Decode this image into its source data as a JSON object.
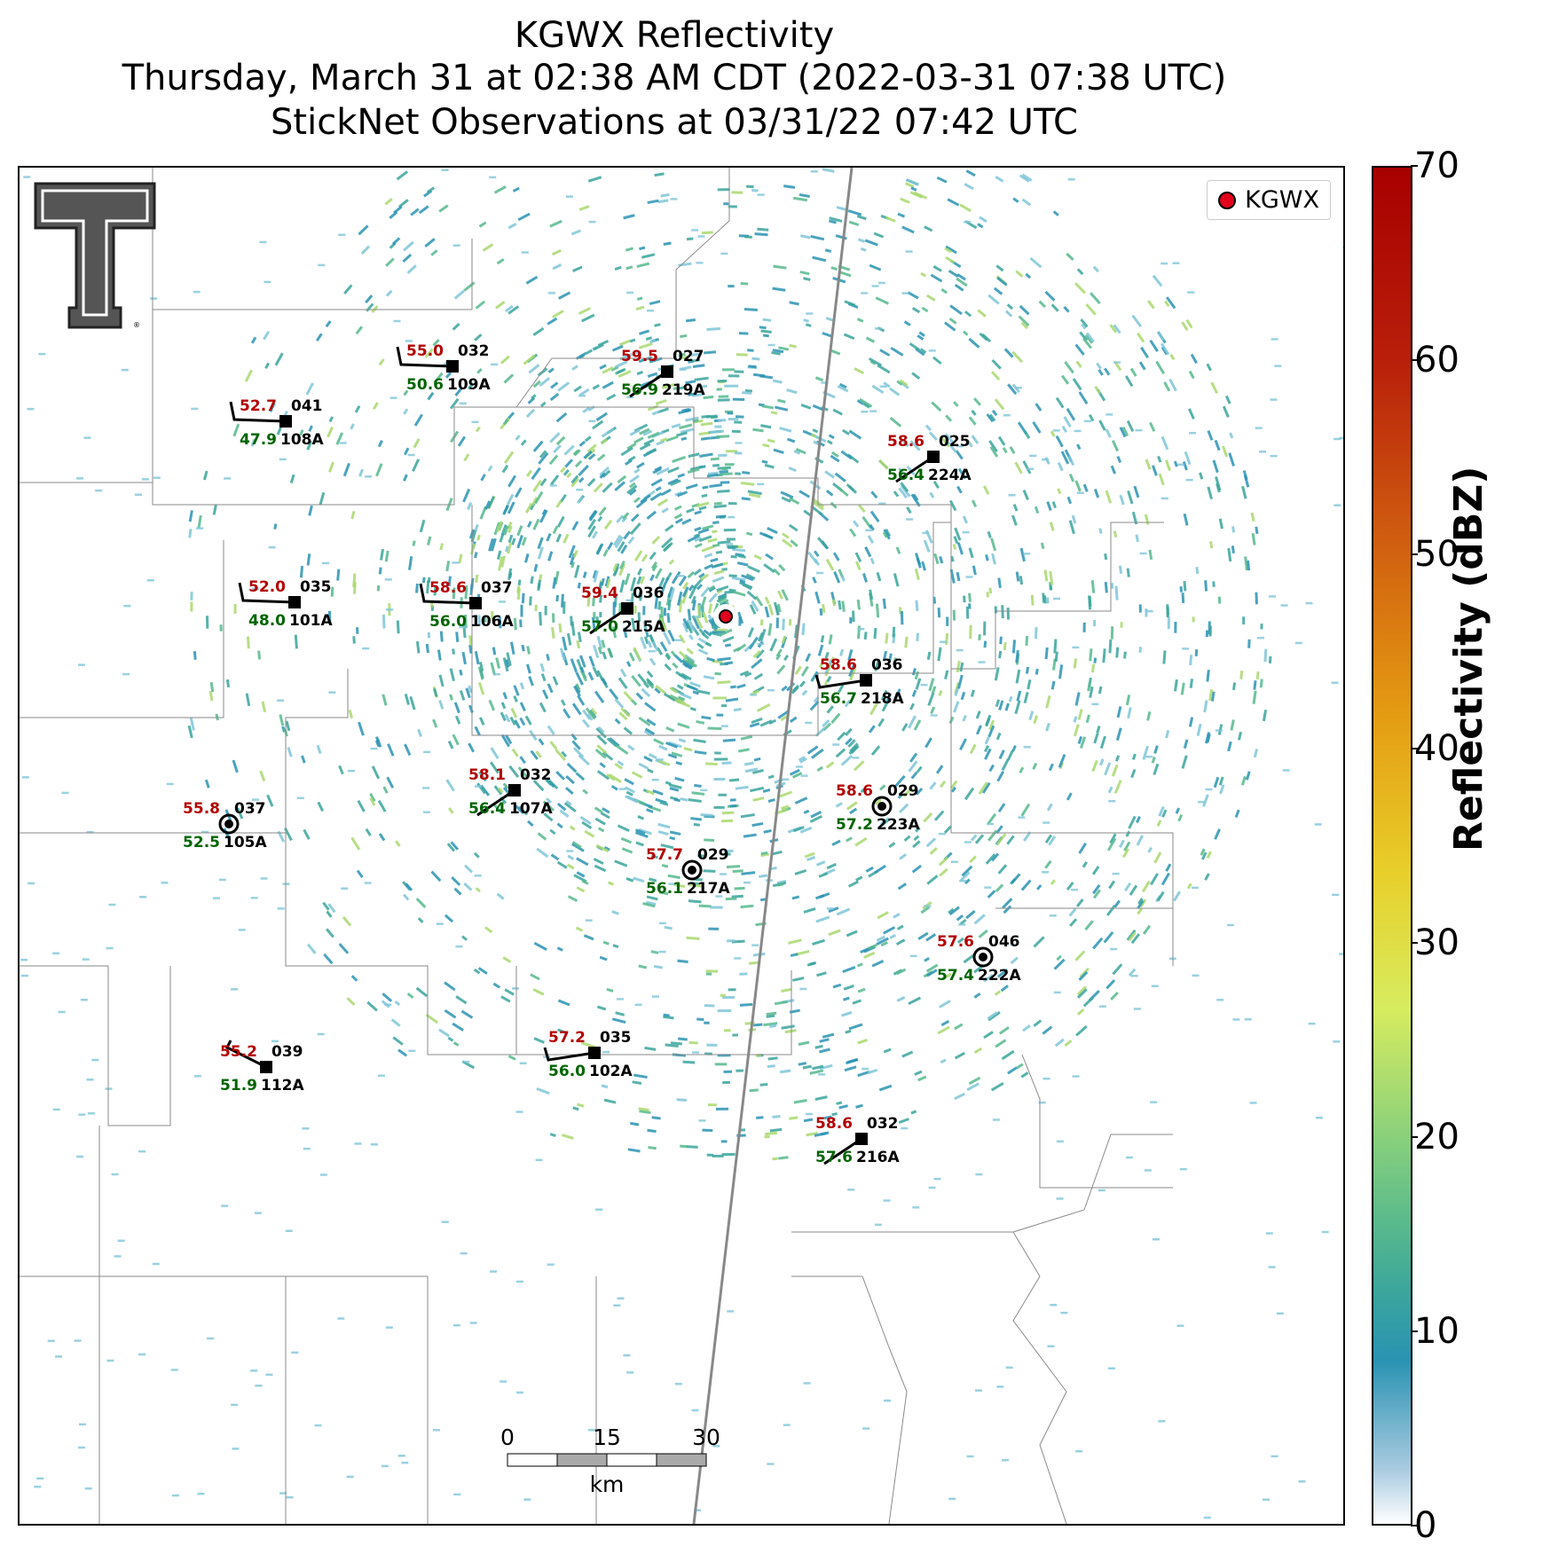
{
  "title": {
    "line1": "KGWX Reflectivity",
    "line2": "Thursday, March 31 at 02:38 AM CDT (2022-03-31 07:38 UTC)",
    "line3": "StickNet Observations at 03/31/22 07:42 UTC"
  },
  "legend": {
    "label": "KGWX",
    "color": "#e0001a"
  },
  "colorbar": {
    "label": "Reflectivity (dBZ)",
    "min": 0,
    "max": 70,
    "ticks": [
      "0",
      "10",
      "20",
      "30",
      "40",
      "50",
      "60",
      "70"
    ]
  },
  "scalebar": {
    "labels": [
      "0",
      "15",
      "30"
    ],
    "unit": "km"
  },
  "colors": {
    "temp": "#b30000",
    "dewpoint": "#006400",
    "id": "#000000",
    "radar": "#e0001a"
  },
  "stations": [
    {
      "id": "109A",
      "temp": "55.0",
      "dew": "50.6",
      "pres": "032",
      "marker": "square",
      "barb": "bent"
    },
    {
      "id": "219A",
      "temp": "59.5",
      "dew": "56.9",
      "pres": "027",
      "marker": "square",
      "barb": "sw"
    },
    {
      "id": "108A",
      "temp": "52.7",
      "dew": "47.9",
      "pres": "041",
      "marker": "square",
      "barb": "bent"
    },
    {
      "id": "224A",
      "temp": "58.6",
      "dew": "56.4",
      "pres": "025",
      "marker": "square",
      "barb": "sw"
    },
    {
      "id": "101A",
      "temp": "52.0",
      "dew": "48.0",
      "pres": "035",
      "marker": "square",
      "barb": "bent"
    },
    {
      "id": "106A",
      "temp": "58.6",
      "dew": "56.0",
      "pres": "037",
      "marker": "square",
      "barb": "bent"
    },
    {
      "id": "215A",
      "temp": "59.4",
      "dew": "57.0",
      "pres": "036",
      "marker": "square",
      "barb": "sw"
    },
    {
      "id": "218A",
      "temp": "58.6",
      "dew": "56.7",
      "pres": "036",
      "marker": "square",
      "barb": "w"
    },
    {
      "id": "107A",
      "temp": "58.1",
      "dew": "56.4",
      "pres": "032",
      "marker": "square",
      "barb": "sw"
    },
    {
      "id": "105A",
      "temp": "55.8",
      "dew": "52.5",
      "pres": "037",
      "marker": "circle",
      "barb": "none"
    },
    {
      "id": "223A",
      "temp": "58.6",
      "dew": "57.2",
      "pres": "029",
      "marker": "circle",
      "barb": "none"
    },
    {
      "id": "217A",
      "temp": "57.7",
      "dew": "56.1",
      "pres": "029",
      "marker": "circle",
      "barb": "none"
    },
    {
      "id": "222A",
      "temp": "57.6",
      "dew": "57.4",
      "pres": "046",
      "marker": "circle",
      "barb": "none"
    },
    {
      "id": "112A",
      "temp": "55.2",
      "dew": "51.9",
      "pres": "039",
      "marker": "square",
      "barb": "nw"
    },
    {
      "id": "102A",
      "temp": "57.2",
      "dew": "56.0",
      "pres": "035",
      "marker": "square",
      "barb": "w"
    },
    {
      "id": "216A",
      "temp": "58.6",
      "dew": "57.6",
      "pres": "032",
      "marker": "square",
      "barb": "sw"
    }
  ]
}
